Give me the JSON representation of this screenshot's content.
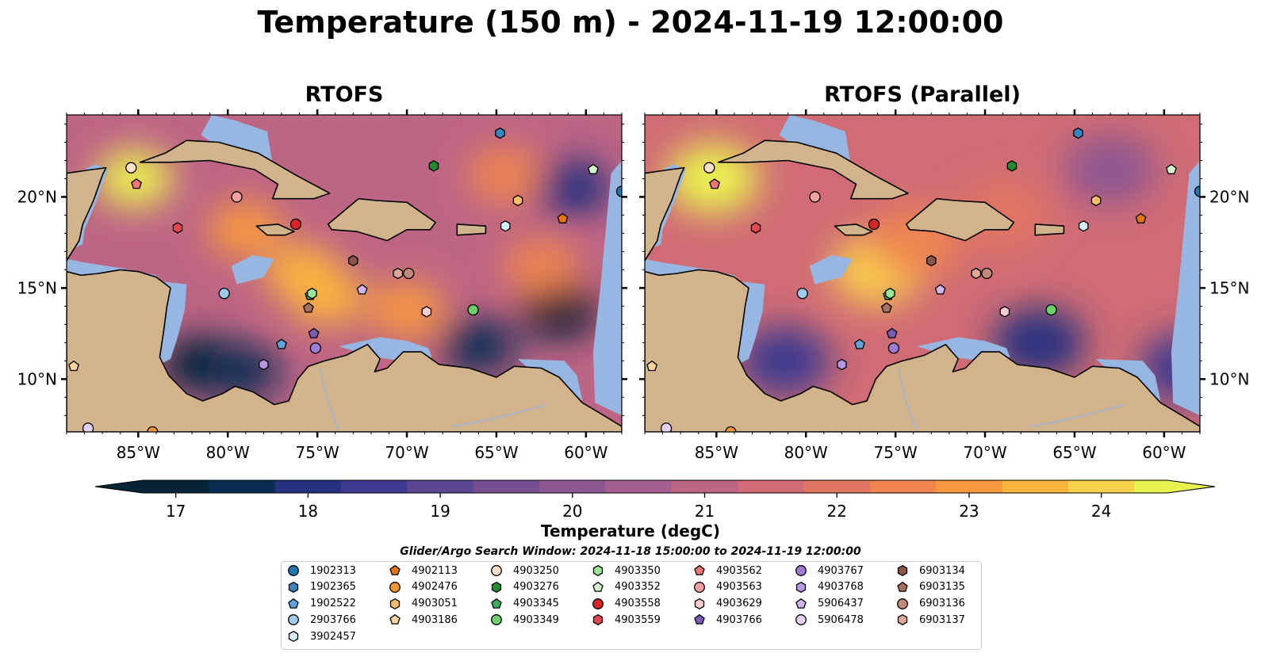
{
  "suptitle": "Temperature (150 m) - 2024-11-19 12:00:00",
  "colors": {
    "land": "#d2b48c",
    "shallow_water": "#97b6e1",
    "coast": "#000000",
    "rivers": "#9fb4d9",
    "colormap": [
      "#062436",
      "#0a2d55",
      "#26327f",
      "#3e3a8f",
      "#5a4691",
      "#764f92",
      "#8d5791",
      "#a55f8f",
      "#bd6585",
      "#d06c75",
      "#e07662",
      "#ef8650",
      "#f7993f",
      "#fbb43c",
      "#f9d24b",
      "#e9f350"
    ]
  },
  "panels": [
    {
      "title": "RTOFS"
    },
    {
      "title": "RTOFS (Parallel)"
    }
  ],
  "map": {
    "lon_range": [
      -89,
      -58
    ],
    "lat_range": [
      7.1,
      24.5
    ],
    "lon_ticks": [
      {
        "value": -85,
        "label": "85°W"
      },
      {
        "value": -80,
        "label": "80°W"
      },
      {
        "value": -75,
        "label": "75°W"
      },
      {
        "value": -70,
        "label": "70°W"
      },
      {
        "value": -65,
        "label": "65°W"
      },
      {
        "value": -60,
        "label": "60°W"
      }
    ],
    "lat_ticks": [
      {
        "value": 10,
        "label": "10°N"
      },
      {
        "value": 15,
        "label": "15°N"
      },
      {
        "value": 20,
        "label": "20°N"
      }
    ]
  },
  "colorbar": {
    "label": "Temperature (degC)",
    "min": 16.75,
    "max": 24.5,
    "step": 0.5,
    "extend": "both",
    "ticks": [
      {
        "value": 17,
        "label": "17"
      },
      {
        "value": 18,
        "label": "18"
      },
      {
        "value": 19,
        "label": "19"
      },
      {
        "value": 20,
        "label": "20"
      },
      {
        "value": 21,
        "label": "21"
      },
      {
        "value": 22,
        "label": "22"
      },
      {
        "value": 23,
        "label": "23"
      },
      {
        "value": 24,
        "label": "24"
      }
    ]
  },
  "legend": {
    "title": "Glider/Argo Search Window: 2024-11-18 15:00:00 to 2024-11-19 12:00:00",
    "columns": [
      [
        {
          "id": "1902313",
          "color": "#1f77b4",
          "shape": "circle"
        },
        {
          "id": "1902365",
          "color": "#3a84c0",
          "shape": "hexagon"
        },
        {
          "id": "1902522",
          "color": "#5da5da",
          "shape": "pentagon"
        },
        {
          "id": "2903766",
          "color": "#9ecae9",
          "shape": "circle"
        },
        {
          "id": "3902457",
          "color": "#d6ecfa",
          "shape": "hexagon"
        }
      ],
      [
        {
          "id": "4902113",
          "color": "#e6750e",
          "shape": "pentagon"
        },
        {
          "id": "4902476",
          "color": "#f39533",
          "shape": "circle"
        },
        {
          "id": "4903051",
          "color": "#fdbb6c",
          "shape": "hexagon"
        },
        {
          "id": "4903186",
          "color": "#fdd49e",
          "shape": "pentagon"
        }
      ],
      [
        {
          "id": "4903250",
          "color": "#fee0c8",
          "shape": "circle"
        },
        {
          "id": "4903276",
          "color": "#238b2f",
          "shape": "hexagon"
        },
        {
          "id": "4903345",
          "color": "#41ab5d",
          "shape": "pentagon"
        },
        {
          "id": "4903349",
          "color": "#6ccf6c",
          "shape": "circle"
        }
      ],
      [
        {
          "id": "4903350",
          "color": "#98e898",
          "shape": "hexagon"
        },
        {
          "id": "4903352",
          "color": "#d4f7cf",
          "shape": "pentagon"
        },
        {
          "id": "4903558",
          "color": "#d62728",
          "shape": "circle"
        },
        {
          "id": "4903559",
          "color": "#e4474f",
          "shape": "hexagon"
        }
      ],
      [
        {
          "id": "4903562",
          "color": "#f07575",
          "shape": "pentagon"
        },
        {
          "id": "4903563",
          "color": "#f7a1a1",
          "shape": "circle"
        },
        {
          "id": "4903629",
          "color": "#fbcdd0",
          "shape": "hexagon"
        },
        {
          "id": "4903766",
          "color": "#7b5bb6",
          "shape": "pentagon"
        }
      ],
      [
        {
          "id": "4903767",
          "color": "#9d7cd4",
          "shape": "circle"
        },
        {
          "id": "4903768",
          "color": "#b798e6",
          "shape": "hexagon"
        },
        {
          "id": "5906437",
          "color": "#cfb5f0",
          "shape": "pentagon"
        },
        {
          "id": "5906478",
          "color": "#e2d0f7",
          "shape": "circle"
        }
      ],
      [
        {
          "id": "6903134",
          "color": "#8c564b",
          "shape": "hexagon"
        },
        {
          "id": "6903135",
          "color": "#a6705f",
          "shape": "pentagon"
        },
        {
          "id": "6903136",
          "color": "#c08a7c",
          "shape": "circle"
        },
        {
          "id": "6903137",
          "color": "#e0a89a",
          "shape": "hexagon"
        }
      ]
    ]
  },
  "chart_data": {
    "type": "heatmap",
    "title": "Temperature (150 m) - 2024-11-19 12:00:00",
    "variable": "Temperature (degC)",
    "depth_m": 150,
    "time": "2024-11-19 12:00:00",
    "subplot_titles": [
      "RTOFS",
      "RTOFS (Parallel)"
    ],
    "x_ticks": [
      "85°W",
      "80°W",
      "75°W",
      "70°W",
      "65°W",
      "60°W"
    ],
    "y_ticks": [
      "10°N",
      "15°N",
      "20°N"
    ],
    "color_range": [
      17,
      24
    ],
    "warm_features_rtofs": [
      {
        "lon": -85.2,
        "lat": 21.0,
        "temp": 24.3
      },
      {
        "lon": -75.8,
        "lat": 15.8,
        "temp": 23.6
      },
      {
        "lon": -74.5,
        "lat": 14.5,
        "temp": 23.3
      },
      {
        "lon": -79.0,
        "lat": 18.2,
        "temp": 22.8
      },
      {
        "lon": -64.5,
        "lat": 21.2,
        "temp": 22.6
      },
      {
        "lon": -70.0,
        "lat": 13.8,
        "temp": 22.8
      },
      {
        "lon": -62.5,
        "lat": 16.2,
        "temp": 22.4
      }
    ],
    "cool_features_rtofs": [
      {
        "lon": -81.5,
        "lat": 10.8,
        "temp": 17.0
      },
      {
        "lon": -79.2,
        "lat": 10.4,
        "temp": 17.4
      },
      {
        "lon": -66.0,
        "lat": 11.8,
        "temp": 17.3
      },
      {
        "lon": -61.5,
        "lat": 13.8,
        "temp": 17.2
      },
      {
        "lon": -60.8,
        "lat": 20.5,
        "temp": 18.2
      }
    ],
    "warm_features_parallel": [
      {
        "lon": -85.2,
        "lat": 21.0,
        "temp": 24.4
      },
      {
        "lon": -76.0,
        "lat": 16.0,
        "temp": 23.8
      },
      {
        "lon": -74.0,
        "lat": 17.5,
        "temp": 22.6
      },
      {
        "lon": -69.0,
        "lat": 19.0,
        "temp": 22.0
      }
    ],
    "cool_features_parallel": [
      {
        "lon": -81.2,
        "lat": 11.0,
        "temp": 18.4
      },
      {
        "lon": -67.0,
        "lat": 12.0,
        "temp": 17.8
      },
      {
        "lon": -63.0,
        "lat": 21.5,
        "temp": 20.2
      },
      {
        "lon": -58.8,
        "lat": 10.6,
        "temp": 18.6
      }
    ],
    "markers": [
      {
        "id": "1902313",
        "lon": -58.0,
        "lat": 20.3
      },
      {
        "id": "1902365",
        "lon": -64.8,
        "lat": 23.5
      },
      {
        "id": "1902522",
        "lon": -77.0,
        "lat": 11.9
      },
      {
        "id": "2903766",
        "lon": -80.2,
        "lat": 14.7
      },
      {
        "id": "3902457",
        "lon": -64.5,
        "lat": 18.4
      },
      {
        "id": "4902113",
        "lon": -61.3,
        "lat": 18.8
      },
      {
        "id": "4902476",
        "lon": -84.2,
        "lat": 7.1
      },
      {
        "id": "4903051",
        "lon": -63.8,
        "lat": 19.8
      },
      {
        "id": "4903186",
        "lon": -88.6,
        "lat": 10.7
      },
      {
        "id": "4903250",
        "lon": -85.4,
        "lat": 21.6
      },
      {
        "id": "4903276",
        "lon": -68.5,
        "lat": 21.7
      },
      {
        "id": "4903345",
        "lon": -75.4,
        "lat": 14.6
      },
      {
        "id": "4903349",
        "lon": -66.3,
        "lat": 13.8
      },
      {
        "id": "4903350",
        "lon": -75.3,
        "lat": 14.7
      },
      {
        "id": "4903352",
        "lon": -59.6,
        "lat": 21.5
      },
      {
        "id": "4903558",
        "lon": -76.2,
        "lat": 18.5
      },
      {
        "id": "4903559",
        "lon": -82.8,
        "lat": 18.3
      },
      {
        "id": "4903562",
        "lon": -85.1,
        "lat": 20.7
      },
      {
        "id": "4903563",
        "lon": -79.5,
        "lat": 20.0
      },
      {
        "id": "4903629",
        "lon": -68.9,
        "lat": 13.7
      },
      {
        "id": "4903766",
        "lon": -75.2,
        "lat": 12.5
      },
      {
        "id": "4903767",
        "lon": -75.1,
        "lat": 11.7
      },
      {
        "id": "4903768",
        "lon": -78.0,
        "lat": 10.8
      },
      {
        "id": "5906437",
        "lon": -72.5,
        "lat": 14.9
      },
      {
        "id": "5906478",
        "lon": -87.8,
        "lat": 7.3
      },
      {
        "id": "6903134",
        "lon": -73.0,
        "lat": 16.5
      },
      {
        "id": "6903135",
        "lon": -75.5,
        "lat": 13.9
      },
      {
        "id": "6903136",
        "lon": -69.9,
        "lat": 15.8
      },
      {
        "id": "6903137",
        "lon": -70.5,
        "lat": 15.8
      }
    ]
  }
}
